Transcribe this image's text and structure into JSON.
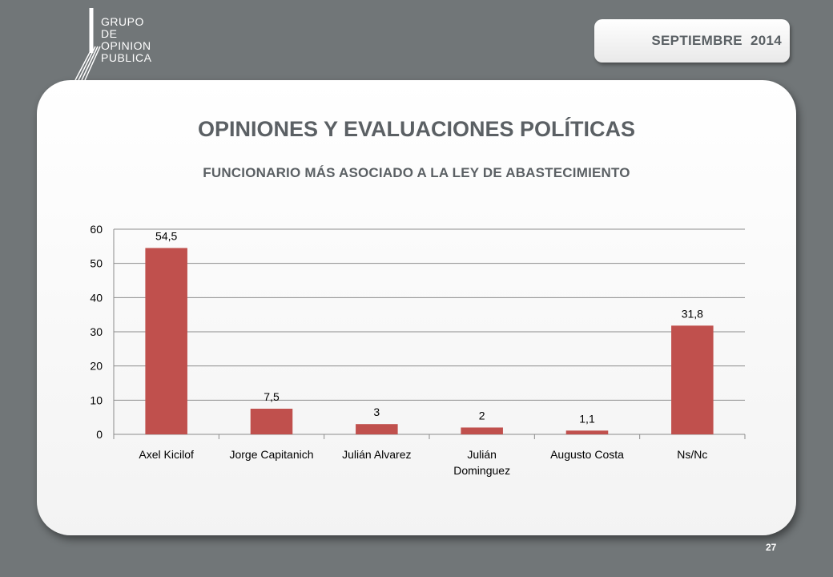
{
  "logo": {
    "lines": [
      "GRUPO",
      "DE",
      "OPINION",
      "PUBLICA"
    ]
  },
  "date_badge": {
    "label": "SEPTIEMBRE  2014"
  },
  "slide": {
    "title": "OPINIONES Y EVALUACIONES POLÍTICAS",
    "subtitle": "FUNCIONARIO MÁS ASOCIADO A LA LEY DE ABASTECIMIENTO",
    "page_number": "27"
  },
  "colors": {
    "bar": "#c0504d",
    "grid": "#8c8c8c",
    "text": "#000000"
  },
  "chart_data": {
    "type": "bar",
    "categories": [
      "Axel Kicilof",
      "Jorge Capitanich",
      "Julián Alvarez",
      "Julián\nDominguez",
      "Augusto Costa",
      "Ns/Nc"
    ],
    "values": [
      54.5,
      7.5,
      3,
      2,
      1.1,
      31.8
    ],
    "value_labels": [
      "54,5",
      "7,5",
      "3",
      "2",
      "1,1",
      "31,8"
    ],
    "yticks": [
      "0",
      "10",
      "20",
      "30",
      "40",
      "50",
      "60"
    ],
    "ylim": [
      0,
      60
    ],
    "grid": true,
    "legend": false
  }
}
